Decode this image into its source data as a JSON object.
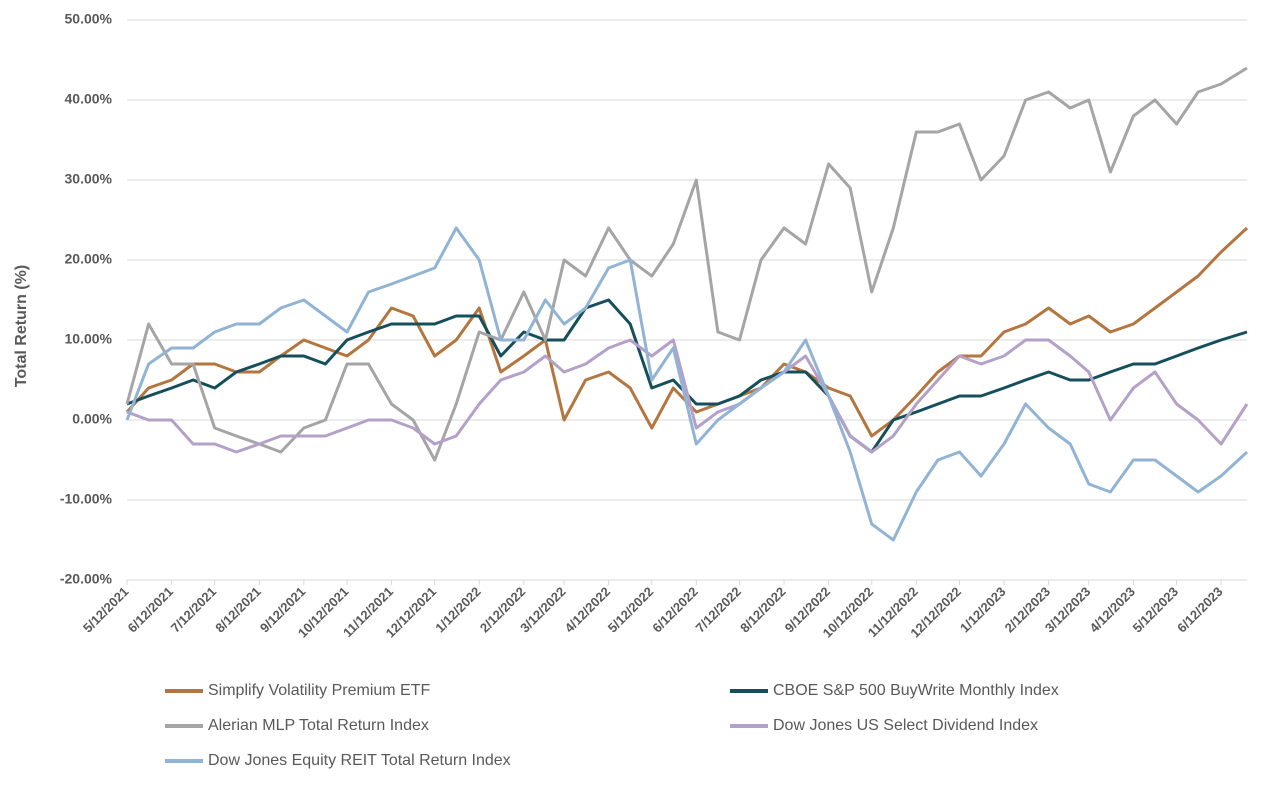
{
  "chart_data": {
    "type": "line",
    "y_label": "Total Return (%)",
    "x": [
      "5/12/2021",
      "5/27/2021",
      "6/12/2021",
      "6/27/2021",
      "7/12/2021",
      "7/27/2021",
      "8/12/2021",
      "8/27/2021",
      "9/12/2021",
      "9/27/2021",
      "10/12/2021",
      "10/27/2021",
      "11/12/2021",
      "11/27/2021",
      "12/12/2021",
      "12/27/2021",
      "1/12/2022",
      "1/27/2022",
      "2/12/2022",
      "2/27/2022",
      "3/12/2022",
      "3/27/2022",
      "4/12/2022",
      "4/27/2022",
      "5/12/2022",
      "5/27/2022",
      "6/12/2022",
      "6/27/2022",
      "7/12/2022",
      "7/27/2022",
      "8/12/2022",
      "8/27/2022",
      "9/12/2022",
      "9/27/2022",
      "10/12/2022",
      "10/27/2022",
      "11/12/2022",
      "11/27/2022",
      "12/12/2022",
      "12/27/2022",
      "1/12/2023",
      "1/27/2023",
      "2/12/2023",
      "2/27/2023",
      "3/12/2023",
      "3/27/2023",
      "4/12/2023",
      "4/27/2023",
      "5/12/2023",
      "5/27/2023",
      "6/12/2023",
      "6/30/2023"
    ],
    "xlim": [
      "5/12/2021",
      "6/30/2023"
    ],
    "xticks": [
      "5/12/2021",
      "6/12/2021",
      "7/12/2021",
      "8/12/2021",
      "9/12/2021",
      "10/12/2021",
      "11/12/2021",
      "12/12/2021",
      "1/12/2022",
      "2/12/2022",
      "3/12/2022",
      "4/12/2022",
      "5/12/2022",
      "6/12/2022",
      "7/12/2022",
      "8/12/2022",
      "9/12/2022",
      "10/12/2022",
      "11/12/2022",
      "12/12/2022",
      "1/12/2023",
      "2/12/2023",
      "3/12/2023",
      "4/12/2023",
      "5/12/2023",
      "6/12/2023"
    ],
    "ylim": [
      -20,
      50
    ],
    "yticks": [
      {
        "value": -20,
        "label": "-20.00%"
      },
      {
        "value": -10,
        "label": "-10.00%"
      },
      {
        "value": 0,
        "label": "0.00%"
      },
      {
        "value": 10,
        "label": "10.00%"
      },
      {
        "value": 20,
        "label": "20.00%"
      },
      {
        "value": 30,
        "label": "30.00%"
      },
      {
        "value": 40,
        "label": "40.00%"
      },
      {
        "value": 50,
        "label": "50.00%"
      }
    ],
    "grid": true,
    "legend": "bottom",
    "series": [
      {
        "name": "Simplify Volatility Premium ETF",
        "color": "#b5753f",
        "values": [
          1,
          4,
          5,
          7,
          7,
          6,
          6,
          8,
          10,
          9,
          8,
          10,
          14,
          13,
          8,
          10,
          14,
          6,
          8,
          10,
          0,
          5,
          6,
          4,
          -1,
          4,
          1,
          2,
          3,
          4,
          7,
          6,
          4,
          3,
          -2,
          0,
          3,
          6,
          8,
          8,
          11,
          12,
          14,
          12,
          13,
          11,
          12,
          14,
          16,
          18,
          21,
          24
        ]
      },
      {
        "name": "CBOE S&P 500 BuyWrite Monthly Index",
        "color": "#164f5c",
        "values": [
          2,
          3,
          4,
          5,
          4,
          6,
          7,
          8,
          8,
          7,
          10,
          11,
          12,
          12,
          12,
          13,
          13,
          8,
          11,
          10,
          10,
          14,
          15,
          12,
          4,
          5,
          2,
          2,
          3,
          5,
          6,
          6,
          3,
          -2,
          -4,
          0,
          1,
          2,
          3,
          3,
          4,
          5,
          6,
          5,
          5,
          6,
          7,
          7,
          8,
          9,
          10,
          11
        ]
      },
      {
        "name": "Alerian MLP Total Return Index",
        "color": "#a5a5a5",
        "values": [
          2,
          12,
          7,
          7,
          -1,
          -2,
          -3,
          -4,
          -1,
          0,
          7,
          7,
          2,
          0,
          -5,
          2,
          11,
          10,
          16,
          10,
          20,
          18,
          24,
          20,
          18,
          22,
          30,
          11,
          10,
          20,
          24,
          22,
          32,
          29,
          16,
          24,
          36,
          36,
          37,
          30,
          33,
          40,
          41,
          39,
          40,
          31,
          38,
          40,
          37,
          41,
          42,
          44
        ]
      },
      {
        "name": "Dow Jones US Select Dividend Index",
        "color": "#b4a1c9",
        "values": [
          1,
          0,
          0,
          -3,
          -3,
          -4,
          -3,
          -2,
          -2,
          -2,
          -1,
          0,
          0,
          -1,
          -3,
          -2,
          2,
          5,
          6,
          8,
          6,
          7,
          9,
          10,
          8,
          10,
          -1,
          1,
          2,
          4,
          6,
          8,
          3,
          -2,
          -4,
          -2,
          2,
          5,
          8,
          7,
          8,
          10,
          10,
          8,
          6,
          0,
          4,
          6,
          2,
          0,
          -3,
          2
        ]
      },
      {
        "name": "Dow Jones Equity REIT Total Return Index",
        "color": "#91b4d6",
        "values": [
          0,
          7,
          9,
          9,
          11,
          12,
          12,
          14,
          15,
          13,
          11,
          16,
          17,
          18,
          19,
          24,
          20,
          10,
          10,
          15,
          12,
          14,
          19,
          20,
          5,
          9,
          -3,
          0,
          2,
          4,
          6,
          10,
          3,
          -4,
          -13,
          -15,
          -9,
          -5,
          -4,
          -7,
          -3,
          2,
          -1,
          -3,
          -8,
          -9,
          -5,
          -5,
          -7,
          -9,
          -7,
          -4
        ]
      }
    ]
  }
}
